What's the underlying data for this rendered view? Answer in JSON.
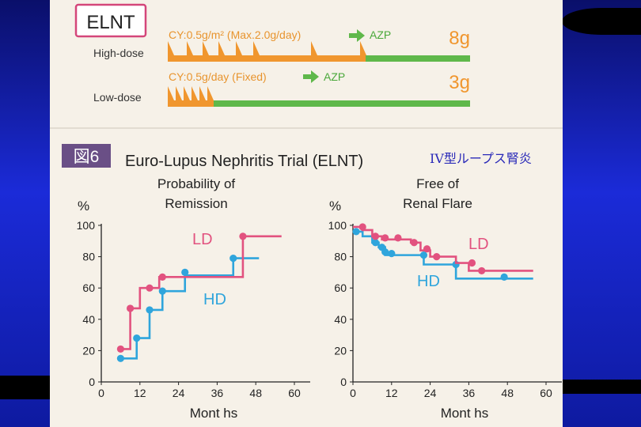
{
  "regimen": {
    "badge": "ELNT",
    "high": {
      "label": "High-dose",
      "text": "CY:0.5g/m² (Max.2.0g/day)",
      "azp": "AZP",
      "total": "8g"
    },
    "low": {
      "label": "Low-dose",
      "text": "CY:0.5g/day (Fixed)",
      "azp": "AZP",
      "total": "3g"
    }
  },
  "figure": {
    "label": "図6",
    "title": "Euro-Lupus Nephritis Trial (ELNT)",
    "note": "IV型ループス腎炎"
  },
  "colors": {
    "LD": "#e2527f",
    "HD": "#2fa5dc",
    "orange": "#f0962e",
    "green": "#5fb84a"
  },
  "chart_data": [
    {
      "type": "line",
      "step": true,
      "title": "Probability of Remission",
      "ylabel": "%",
      "xlabel": "Mont hs",
      "xlim": [
        0,
        60
      ],
      "ylim": [
        0,
        100
      ],
      "xticks": [
        0,
        12,
        24,
        36,
        48,
        60
      ],
      "xtick_labels": [
        "0",
        "12",
        "24",
        "36",
        "48",
        "60"
      ],
      "yticks": [
        0,
        20,
        40,
        60,
        80,
        100
      ],
      "ytick_labels": [
        "0",
        "20",
        "40",
        "60",
        "80",
        "100"
      ],
      "series": [
        {
          "name": "LD",
          "x": [
            6,
            9,
            9,
            12,
            12,
            15,
            15,
            18,
            18,
            24,
            24,
            44,
            44,
            56
          ],
          "y": [
            21,
            21,
            47,
            47,
            60,
            60,
            60,
            60,
            67,
            67,
            67,
            67,
            93,
            93
          ],
          "markers": [
            [
              6,
              21
            ],
            [
              9,
              47
            ],
            [
              15,
              60
            ],
            [
              19,
              67
            ],
            [
              44,
              93
            ]
          ]
        },
        {
          "name": "HD",
          "x": [
            6,
            11,
            11,
            15,
            15,
            19,
            19,
            26,
            26,
            41,
            41,
            49
          ],
          "y": [
            15,
            15,
            28,
            28,
            46,
            46,
            58,
            58,
            68,
            68,
            79,
            79
          ],
          "markers": [
            [
              6,
              15
            ],
            [
              11,
              28
            ],
            [
              15,
              46
            ],
            [
              19,
              58
            ],
            [
              26,
              70
            ],
            [
              41,
              79
            ]
          ]
        }
      ]
    },
    {
      "type": "line",
      "step": true,
      "title": "Free of Renal Flare",
      "ylabel": "%",
      "xlabel": "Mont hs",
      "xlim": [
        0,
        60
      ],
      "ylim": [
        0,
        100
      ],
      "xticks": [
        0,
        12,
        24,
        36,
        48,
        60
      ],
      "xtick_labels": [
        "0",
        "12",
        "24",
        "36",
        "48",
        "60"
      ],
      "yticks": [
        0,
        20,
        40,
        60,
        80,
        100
      ],
      "ytick_labels": [
        "0",
        "20",
        "40",
        "60",
        "80",
        "100"
      ],
      "series": [
        {
          "name": "LD",
          "x": [
            0,
            3,
            3,
            6,
            6,
            9,
            9,
            18,
            18,
            21,
            21,
            24,
            24,
            32,
            32,
            36,
            36,
            56
          ],
          "y": [
            99,
            99,
            97,
            97,
            93,
            93,
            91,
            91,
            89,
            89,
            84,
            84,
            80,
            80,
            76,
            76,
            71,
            71
          ],
          "markers": [
            [
              3,
              99
            ],
            [
              7,
              93
            ],
            [
              10,
              92
            ],
            [
              14,
              92
            ],
            [
              19,
              89
            ],
            [
              23,
              85
            ],
            [
              26,
              80
            ],
            [
              37,
              76
            ],
            [
              40,
              71
            ]
          ]
        },
        {
          "name": "HD",
          "x": [
            0,
            3,
            3,
            6,
            6,
            8,
            8,
            10,
            10,
            12,
            12,
            22,
            22,
            32,
            32,
            56
          ],
          "y": [
            96,
            96,
            93,
            93,
            89,
            89,
            86,
            86,
            81,
            81,
            81,
            81,
            75,
            75,
            66,
            66
          ],
          "markers": [
            [
              1,
              96
            ],
            [
              7,
              89
            ],
            [
              9,
              86
            ],
            [
              10,
              83
            ],
            [
              12,
              82
            ],
            [
              22,
              81
            ],
            [
              32,
              75
            ],
            [
              47,
              67
            ]
          ]
        }
      ]
    }
  ]
}
